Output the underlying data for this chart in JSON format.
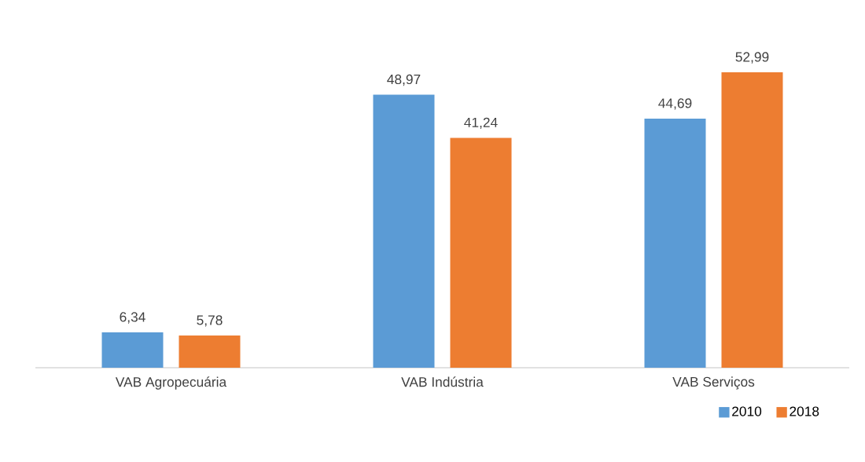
{
  "chart_data": {
    "type": "bar",
    "categories": [
      "VAB Agropecuária",
      "VAB Indústria",
      "VAB Serviços"
    ],
    "series": [
      {
        "name": "2010",
        "color": "#5b9bd5",
        "values": [
          6.34,
          48.97,
          44.69
        ],
        "value_labels": [
          "6,34",
          "48,97",
          "44,69"
        ]
      },
      {
        "name": "2018",
        "color": "#ed7d31",
        "values": [
          5.78,
          41.24,
          52.99
        ],
        "value_labels": [
          "5,78",
          "41,24",
          "52,99"
        ]
      }
    ],
    "legend": "bottom right"
  }
}
